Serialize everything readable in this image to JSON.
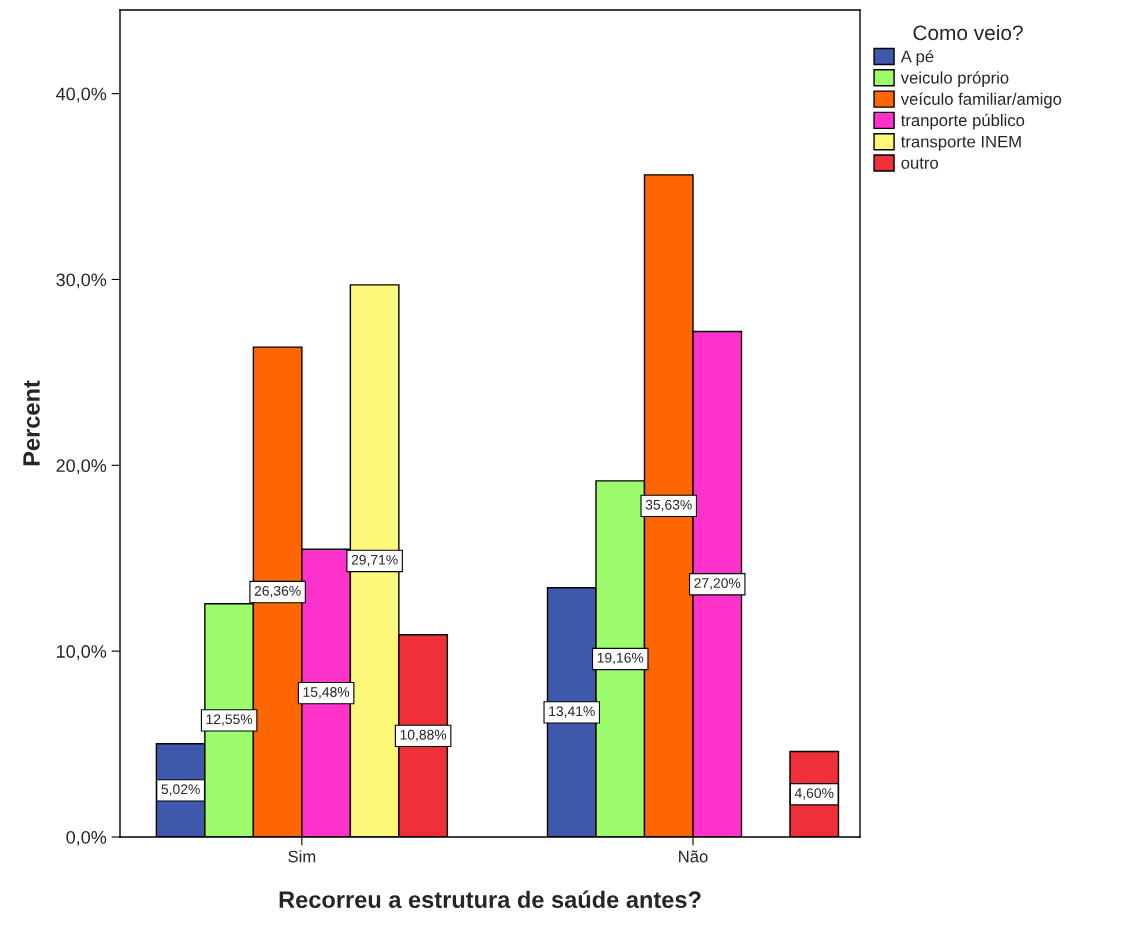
{
  "chart_data": {
    "type": "bar",
    "xlabel": "Recorreu a estrutura de saúde antes?",
    "ylabel": "Percent",
    "legend_title": "Como veio?",
    "categories": [
      "Sim",
      "Não"
    ],
    "series": [
      {
        "name": "A pé",
        "color": "#3e58ac",
        "values": [
          5.02,
          13.41
        ],
        "value_labels": [
          "5,02%",
          "13,41%"
        ]
      },
      {
        "name": "veiculo próprio",
        "color": "#9cfc6c",
        "values": [
          12.55,
          19.16
        ],
        "value_labels": [
          "12,55%",
          "19,16%"
        ]
      },
      {
        "name": "veículo familiar/amigo",
        "color": "#ff6600",
        "values": [
          26.36,
          35.63
        ],
        "value_labels": [
          "26,36%",
          "35,63%"
        ]
      },
      {
        "name": "tranporte público",
        "color": "#ff33cc",
        "values": [
          15.48,
          27.2
        ],
        "value_labels": [
          "15,48%",
          "27,20%"
        ]
      },
      {
        "name": "transporte INEM",
        "color": "#fbf87a",
        "values": [
          29.71,
          null
        ],
        "value_labels": [
          "29,71%",
          null
        ]
      },
      {
        "name": "outro",
        "color": "#ef3038",
        "values": [
          10.88,
          4.6
        ],
        "value_labels": [
          "10,88%",
          "4,60%"
        ]
      }
    ],
    "ylim": [
      0,
      44.5
    ],
    "yticks": [
      {
        "value": 0,
        "label": "0,0%"
      },
      {
        "value": 10,
        "label": "10,0%"
      },
      {
        "value": 20,
        "label": "20,0%"
      },
      {
        "value": 30,
        "label": "30,0%"
      },
      {
        "value": 40,
        "label": "40,0%"
      }
    ],
    "grid": false,
    "legend": "top right"
  }
}
